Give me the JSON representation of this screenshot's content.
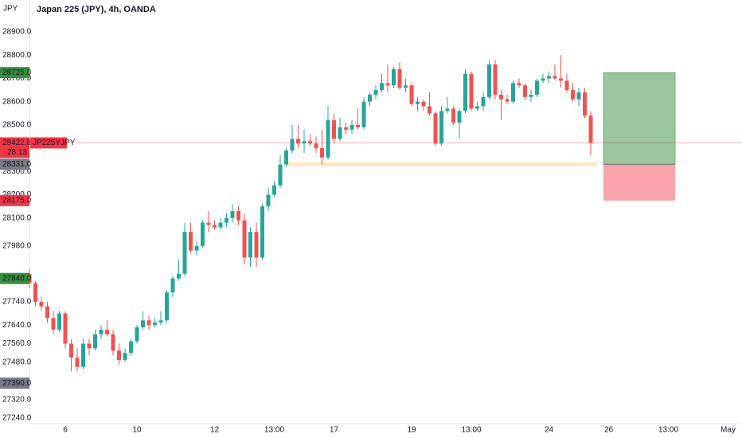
{
  "chart_data": {
    "type": "candlestick",
    "title": "Japan 225 (JPY), 4h, OANDA",
    "y_unit": "JPY",
    "up_color": "#26a69a",
    "down_color": "#ef5350",
    "grid": false,
    "ylim": [
      27216,
      29037
    ],
    "yticks": [
      {
        "value": 28900,
        "label": "28900.0"
      },
      {
        "value": 28800,
        "label": "28800.0"
      },
      {
        "value": 28700,
        "label": "28700.0"
      },
      {
        "value": 28600,
        "label": "28600.0"
      },
      {
        "value": 28500,
        "label": "28500.0"
      },
      {
        "value": 28300,
        "label": "28300.0"
      },
      {
        "value": 28200,
        "label": "28200.0"
      },
      {
        "value": 28100,
        "label": "28100.0"
      },
      {
        "value": 27980,
        "label": "27980.0"
      },
      {
        "value": 27740,
        "label": "27740.0"
      },
      {
        "value": 27640,
        "label": "27640.0"
      },
      {
        "value": 27560,
        "label": "27560.0"
      },
      {
        "value": 27480,
        "label": "27480.0"
      },
      {
        "value": 27320,
        "label": "27320.0"
      },
      {
        "value": 27240,
        "label": "27240.0"
      }
    ],
    "categories": [
      null,
      null,
      null,
      null,
      null,
      null,
      "6",
      null,
      null,
      null,
      null,
      null,
      null,
      null,
      null,
      null,
      null,
      null,
      "10",
      null,
      null,
      null,
      null,
      null,
      null,
      null,
      null,
      null,
      null,
      null,
      null,
      "12",
      null,
      null,
      null,
      null,
      null,
      null,
      null,
      null,
      null,
      "13:00",
      null,
      null,
      null,
      null,
      null,
      null,
      null,
      null,
      null,
      "17",
      null,
      null,
      null,
      null,
      null,
      null,
      null,
      null,
      null,
      null,
      null,
      null,
      "19",
      null,
      null,
      null,
      null,
      null,
      null,
      null,
      null,
      null,
      "13:00",
      null,
      null,
      null,
      null,
      null,
      null,
      null,
      null,
      null,
      null,
      null,
      null,
      "24",
      null,
      null,
      null,
      null,
      null,
      null,
      null,
      null,
      null,
      "26",
      null,
      null,
      null,
      null,
      null,
      null,
      null,
      null,
      null,
      "13:00",
      null,
      null,
      null,
      null,
      null,
      null,
      null,
      null,
      null,
      "May"
    ],
    "open": [
      27860,
      27820,
      27740,
      27720,
      27670,
      27620,
      27690,
      27560,
      27500,
      27460,
      27560,
      27540,
      27600,
      27620,
      27600,
      27530,
      27490,
      27520,
      27570,
      27630,
      27660,
      27640,
      27650,
      27660,
      27780,
      27840,
      27860,
      28040,
      27960,
      27980,
      28080,
      28070,
      28060,
      28080,
      28100,
      28130,
      28090,
      27930,
      28040,
      27930,
      28150,
      28200,
      28240,
      28330,
      28390,
      28440,
      28420,
      28430,
      28420,
      28400,
      28360,
      28520,
      28440,
      28490,
      28480,
      28500,
      28490,
      28600,
      28630,
      28650,
      28680,
      28670,
      28740,
      28660,
      28670,
      28590,
      28600,
      28580,
      28550,
      28420,
      28560,
      28570,
      28510,
      28560,
      28720,
      28570,
      28580,
      28620,
      28760,
      28630,
      28610,
      28600,
      28680,
      28670,
      28620,
      28630,
      28690,
      28700,
      28710,
      28700,
      28690,
      28650,
      28610,
      28640,
      28540,
      null,
      null,
      null,
      null,
      null,
      null,
      null,
      null,
      null,
      null,
      null,
      null,
      null,
      null,
      null,
      null,
      null,
      null,
      null,
      null,
      null,
      null,
      null
    ],
    "high": [
      27880,
      27830,
      27760,
      27740,
      27700,
      27700,
      27700,
      27580,
      27540,
      27580,
      27580,
      27620,
      27640,
      27660,
      27620,
      27560,
      27540,
      27580,
      27640,
      27700,
      27680,
      27670,
      27700,
      27790,
      27850,
      27920,
      28080,
      28080,
      28000,
      28090,
      28130,
      28090,
      28100,
      28120,
      28160,
      28150,
      28120,
      28060,
      28080,
      28160,
      28230,
      28260,
      28370,
      28400,
      28500,
      28500,
      28480,
      28460,
      28450,
      28480,
      28580,
      28550,
      28530,
      28510,
      28520,
      28570,
      28620,
      28640,
      28670,
      28720,
      28760,
      28750,
      28770,
      28700,
      28680,
      28620,
      28610,
      28640,
      28560,
      28580,
      28620,
      28580,
      28570,
      28740,
      28730,
      28600,
      28640,
      28780,
      28780,
      28650,
      28630,
      28690,
      28700,
      28680,
      28650,
      28700,
      28720,
      28730,
      28760,
      28800,
      28720,
      28680,
      28660,
      28660,
      28560,
      null,
      null,
      null,
      null,
      null,
      null,
      null,
      null,
      null,
      null,
      null,
      null,
      null,
      null,
      null,
      null,
      null,
      null,
      null,
      null,
      null,
      null,
      null
    ],
    "low": [
      27800,
      27720,
      27700,
      27650,
      27600,
      27610,
      27540,
      27440,
      27440,
      27450,
      27510,
      27530,
      27580,
      27590,
      27510,
      27470,
      27480,
      27510,
      27560,
      27620,
      27620,
      27630,
      27640,
      27650,
      27760,
      27830,
      27850,
      27950,
      27940,
      27970,
      28040,
      28050,
      28050,
      28060,
      28080,
      28070,
      27900,
      27890,
      27890,
      27920,
      28130,
      28190,
      28230,
      28320,
      28380,
      28400,
      28380,
      28410,
      28380,
      28330,
      28350,
      28420,
      28430,
      28460,
      28460,
      28480,
      28480,
      28580,
      28610,
      28640,
      28640,
      28660,
      28650,
      28640,
      28580,
      28560,
      28560,
      28540,
      28410,
      28410,
      28550,
      28500,
      28440,
      28550,
      28560,
      28560,
      28560,
      28610,
      28610,
      28520,
      28590,
      28590,
      28660,
      28610,
      28600,
      28620,
      28680,
      28680,
      28690,
      28660,
      28640,
      28600,
      28580,
      28530,
      28370,
      null,
      null,
      null,
      null,
      null,
      null,
      null,
      null,
      null,
      null,
      null,
      null,
      null,
      null,
      null,
      null,
      null,
      null,
      null,
      null,
      null,
      null,
      null
    ],
    "close": [
      27820,
      27740,
      27720,
      27670,
      27620,
      27690,
      27560,
      27500,
      27460,
      27560,
      27540,
      27600,
      27620,
      27600,
      27530,
      27490,
      27520,
      27570,
      27630,
      27660,
      27640,
      27650,
      27660,
      27780,
      27840,
      27860,
      28040,
      27960,
      27980,
      28080,
      28070,
      28060,
      28080,
      28100,
      28130,
      28090,
      27930,
      28040,
      27930,
      28150,
      28200,
      28240,
      28330,
      28390,
      28440,
      28420,
      28430,
      28420,
      28400,
      28360,
      28520,
      28440,
      28490,
      28480,
      28500,
      28490,
      28600,
      28630,
      28650,
      28680,
      28670,
      28740,
      28660,
      28670,
      28590,
      28600,
      28580,
      28550,
      28420,
      28560,
      28570,
      28510,
      28560,
      28720,
      28570,
      28580,
      28620,
      28760,
      28630,
      28610,
      28600,
      28680,
      28670,
      28620,
      28630,
      28690,
      28700,
      28710,
      28700,
      28690,
      28650,
      28610,
      28640,
      28540,
      28422.8,
      null,
      null,
      null,
      null,
      null,
      null,
      null,
      null,
      null,
      null,
      null,
      null,
      null,
      null,
      null,
      null,
      null,
      null,
      null,
      null,
      null,
      null,
      null
    ],
    "position": {
      "target": 28725.0,
      "entry": 28331.0,
      "stop": 28175.0,
      "target_color": "#388e3c",
      "stop_color": "#f23645",
      "entry_color": "#787b86"
    },
    "current_price": {
      "value": 28422.8,
      "label": "28422.8",
      "symbol": "JP225YJPY",
      "countdown": "28:13",
      "color": "#f23645"
    },
    "price_labels": [
      {
        "value": 28725.0,
        "label": "28725.0",
        "color": "#388e3c"
      },
      {
        "value": 28331.0,
        "label": "28331.0",
        "color": "#787b86"
      },
      {
        "value": 28175.0,
        "label": "28175.0",
        "color": "#f23645"
      },
      {
        "value": 27840.0,
        "label": "27840.0",
        "color": "#388e3c"
      },
      {
        "value": 27390.0,
        "label": "27390.0",
        "color": "#787b86"
      }
    ]
  }
}
